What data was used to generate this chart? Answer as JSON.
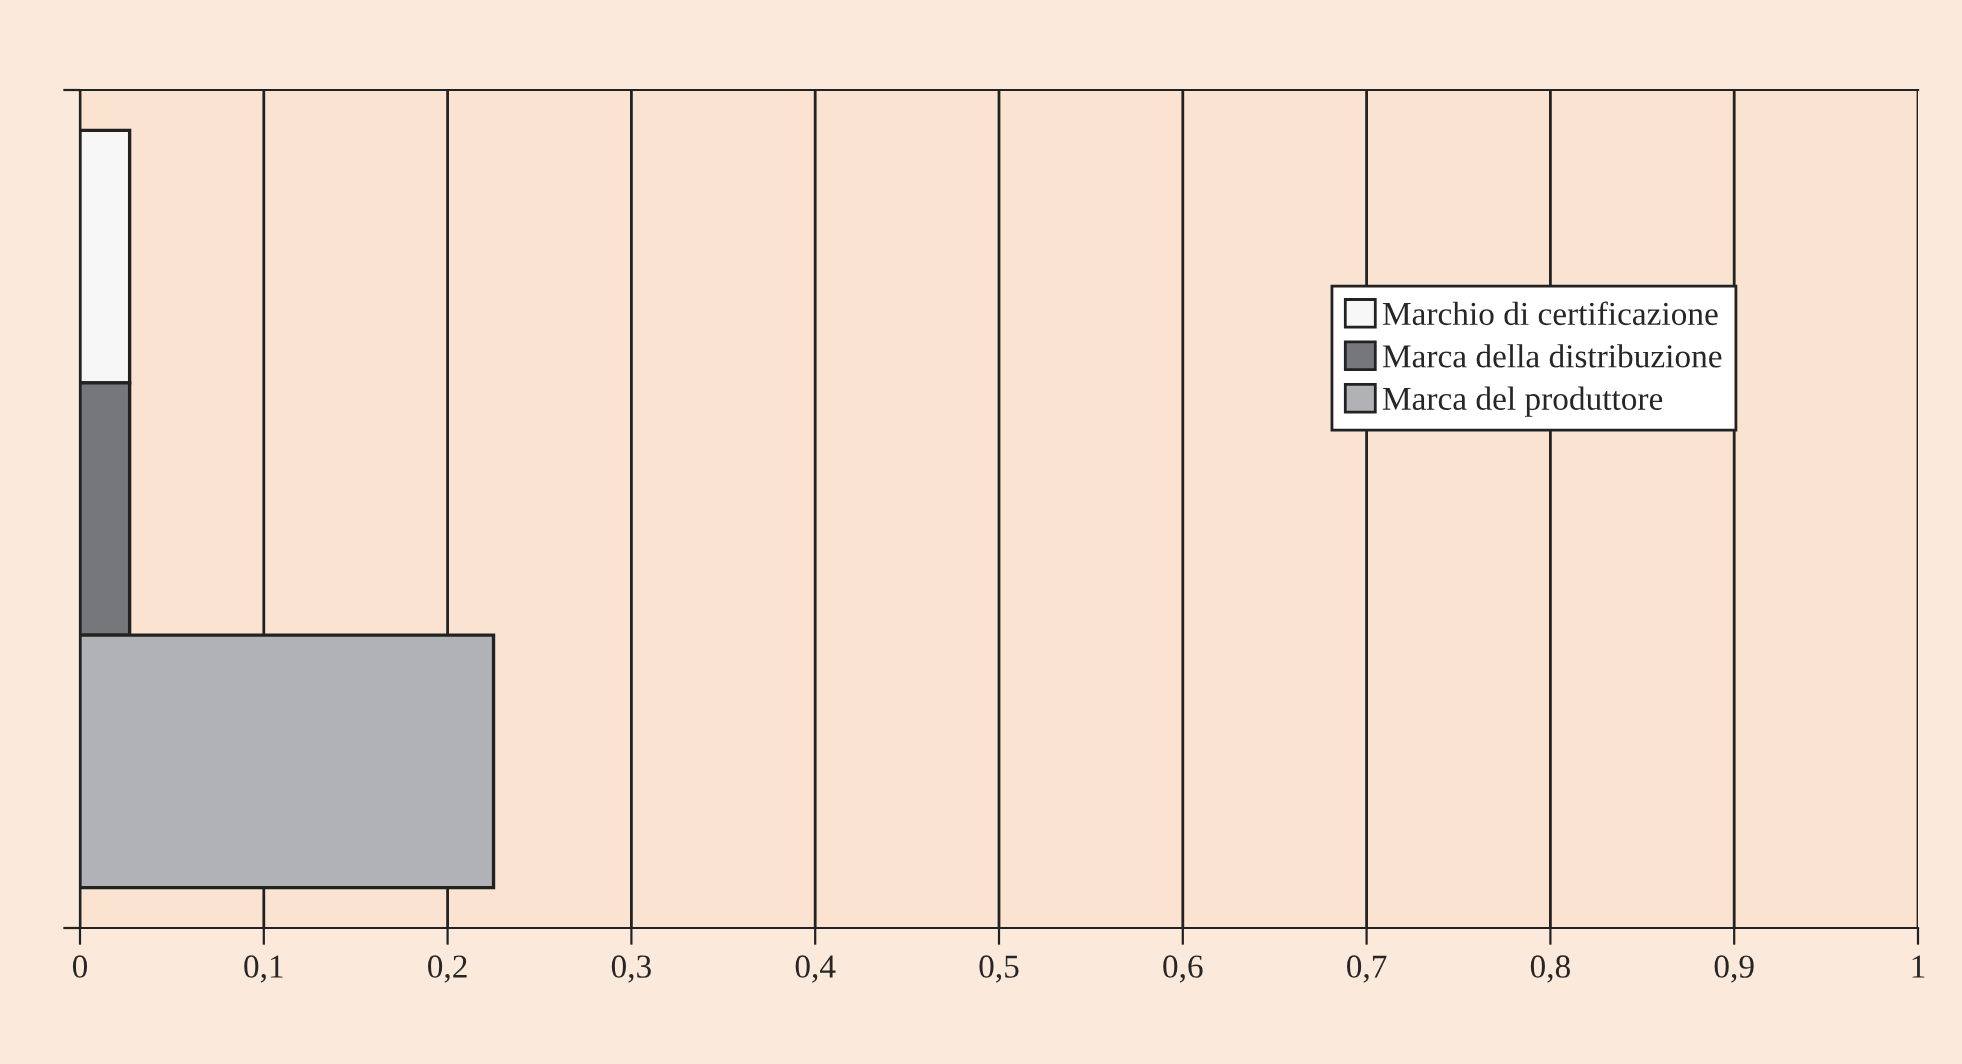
{
  "chart_data": {
    "type": "bar",
    "orientation": "horizontal",
    "categories": [
      null,
      null,
      null
    ],
    "series": [
      {
        "name": "Marchio di certificazione",
        "color": "#f7f7f7",
        "values": [
          0.027,
          null,
          null
        ]
      },
      {
        "name": "Marca della distribuzione",
        "color": "#76777b",
        "values": [
          null,
          0.027,
          null
        ]
      },
      {
        "name": "Marca del produttore",
        "color": "#b1b2b6",
        "values": [
          null,
          null,
          0.225
        ]
      }
    ],
    "xlim": [
      0,
      1
    ],
    "xticks": [
      0,
      {
        "value": 0.1,
        "label": "0,1"
      },
      {
        "value": 0.2,
        "label": "0,2"
      },
      {
        "value": 0.3,
        "label": "0,3"
      },
      {
        "value": 0.4,
        "label": "0,4"
      },
      {
        "value": 0.5,
        "label": "0,5"
      },
      {
        "value": 0.6,
        "label": "0,6"
      },
      {
        "value": 0.7,
        "label": "0,7"
      },
      {
        "value": 0.8,
        "label": "0,8"
      },
      {
        "value": 0.9,
        "label": "0,9"
      },
      1
    ],
    "grid": "x",
    "legend": "right",
    "tick_labels": "x"
  }
}
